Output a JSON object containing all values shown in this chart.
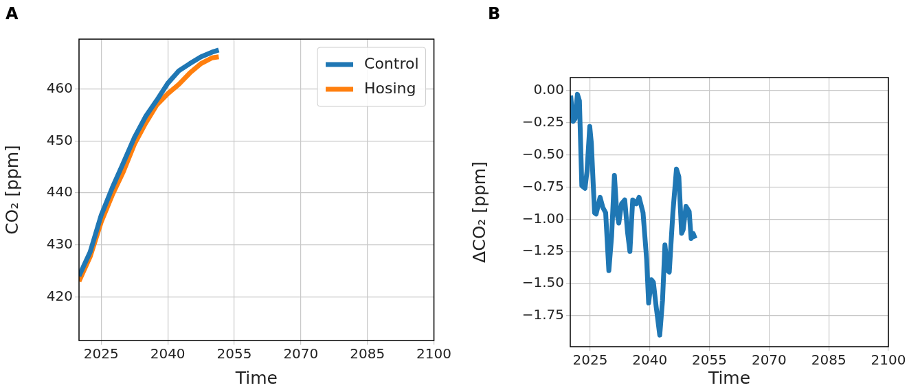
{
  "chart_data": [
    {
      "type": "line",
      "title": "A",
      "xlabel": "Time",
      "ylabel": "CO₂ [ppm]",
      "legend": "top right",
      "grid": true,
      "x": [
        2020,
        2022.5,
        2025,
        2027.5,
        2030,
        2032.5,
        2035,
        2037.5,
        2040,
        2042.5,
        2045,
        2047.5,
        2050,
        2051.5
      ],
      "series": [
        {
          "name": "Control",
          "color": "#1f77b4",
          "values": [
            424.0,
            428.6,
            435.7,
            441.0,
            445.8,
            450.7,
            454.7,
            457.8,
            461.1,
            463.5,
            464.9,
            466.2,
            467.1,
            467.5
          ]
        },
        {
          "name": "Hosing",
          "color": "#ff7f0e",
          "values": [
            423.0,
            427.7,
            434.4,
            439.6,
            444.1,
            449.4,
            453.4,
            456.9,
            459.1,
            460.9,
            463.1,
            464.9,
            466.0,
            466.2
          ]
        }
      ],
      "xlim": [
        2020,
        2100
      ],
      "xticks": [
        2025,
        2040,
        2055,
        2070,
        2085,
        2100
      ],
      "ylim": [
        411.6,
        469.6
      ],
      "yticks": [
        420,
        430,
        440,
        450,
        460
      ]
    },
    {
      "type": "line",
      "title": "B",
      "xlabel": "Time",
      "ylabel": "ΔCO₂ [ppm]",
      "grid": true,
      "x": [
        2020.1,
        2020.7,
        2021.2,
        2021.8,
        2022.3,
        2022.9,
        2023.7,
        2024.2,
        2024.9,
        2025.3,
        2026.1,
        2026.5,
        2027.5,
        2028.2,
        2028.9,
        2029.7,
        2030.4,
        2031.1,
        2031.7,
        2032.2,
        2032.9,
        2033.7,
        2034.4,
        2035.0,
        2035.7,
        2036.6,
        2037.3,
        2038.3,
        2039.2,
        2039.7,
        2040.4,
        2040.9,
        2041.6,
        2042.5,
        2043.2,
        2043.8,
        2044.5,
        2044.9,
        2045.8,
        2046.7,
        2047.3,
        2048.0,
        2048.4,
        2049.1,
        2049.9,
        2050.4,
        2050.9,
        2051.4
      ],
      "series": [
        {
          "color": "#1f77b4",
          "values": [
            -0.04,
            -0.24,
            -0.22,
            -0.03,
            -0.08,
            -0.74,
            -0.76,
            -0.63,
            -0.28,
            -0.41,
            -0.95,
            -0.96,
            -0.83,
            -0.91,
            -0.95,
            -1.4,
            -1.13,
            -0.66,
            -0.95,
            -1.03,
            -0.88,
            -0.85,
            -1.1,
            -1.25,
            -0.85,
            -0.88,
            -0.83,
            -0.95,
            -1.31,
            -1.65,
            -1.47,
            -1.49,
            -1.68,
            -1.9,
            -1.63,
            -1.2,
            -1.4,
            -1.41,
            -0.95,
            -0.61,
            -0.67,
            -1.11,
            -1.08,
            -0.9,
            -0.94,
            -1.15,
            -1.11,
            -1.15
          ]
        }
      ],
      "xlim": [
        2020,
        2100
      ],
      "xticks": [
        2025,
        2040,
        2055,
        2070,
        2085,
        2100
      ],
      "ylim": [
        -1.99,
        0.1
      ],
      "yticks": [
        {
          "value": 0,
          "label": "0.00"
        },
        {
          "value": -0.25,
          "label": "−0.25"
        },
        {
          "value": -0.5,
          "label": "−0.50"
        },
        {
          "value": -0.75,
          "label": "−0.75"
        },
        {
          "value": -1,
          "label": "−1.00"
        },
        {
          "value": -1.25,
          "label": "−1.25"
        },
        {
          "value": -1.5,
          "label": "−1.50"
        },
        {
          "value": -1.75,
          "label": "−1.75"
        }
      ]
    }
  ]
}
